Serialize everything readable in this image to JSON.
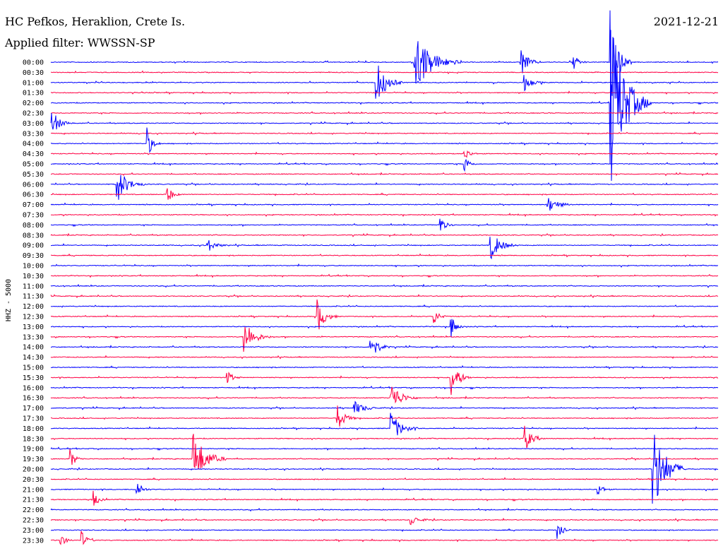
{
  "header": {
    "station": "HC Pefkos, Heraklion, Crete Is.",
    "filter": "Applied filter: WWSSN-SP",
    "date": "2021-12-21"
  },
  "chart_data": {
    "type": "line",
    "title": "HC Pefkos, Heraklion, Crete Is.",
    "ylabel": "HHZ - 5000",
    "colors": {
      "even_hour": "#0000ff",
      "half_hour": "#ff0044"
    },
    "rows": [
      "00:00",
      "00:30",
      "01:00",
      "01:30",
      "02:00",
      "02:30",
      "03:00",
      "03:30",
      "04:00",
      "04:30",
      "05:00",
      "05:30",
      "06:00",
      "06:30",
      "07:00",
      "07:30",
      "08:00",
      "08:30",
      "09:00",
      "09:30",
      "10:00",
      "10:30",
      "11:00",
      "11:30",
      "12:00",
      "12:30",
      "13:00",
      "13:30",
      "14:00",
      "14:30",
      "15:00",
      "15:30",
      "16:00",
      "16:30",
      "17:00",
      "17:30",
      "18:00",
      "18:30",
      "19:00",
      "19:30",
      "20:00",
      "20:30",
      "21:00",
      "21:30",
      "22:00",
      "22:30",
      "23:00",
      "23:30"
    ],
    "events": [
      {
        "row": 0,
        "x": 0.545,
        "amp": 3.2,
        "dur": 0.07
      },
      {
        "row": 0,
        "x": 0.705,
        "amp": 1.4,
        "dur": 0.03
      },
      {
        "row": 0,
        "x": 0.783,
        "amp": 0.9,
        "dur": 0.02
      },
      {
        "row": 0,
        "x": 0.84,
        "amp": 4.2,
        "dur": 0.03
      },
      {
        "row": 2,
        "x": 0.488,
        "amp": 2.2,
        "dur": 0.04
      },
      {
        "row": 2,
        "x": 0.71,
        "amp": 0.8,
        "dur": 0.03
      },
      {
        "row": 4,
        "x": 0.84,
        "amp": 8.5,
        "dur": 0.06
      },
      {
        "row": 6,
        "x": 0.003,
        "amp": 1.2,
        "dur": 0.03
      },
      {
        "row": 8,
        "x": 0.145,
        "amp": 1.4,
        "dur": 0.02
      },
      {
        "row": 9,
        "x": 0.62,
        "amp": 0.7,
        "dur": 0.02
      },
      {
        "row": 10,
        "x": 0.62,
        "amp": 0.9,
        "dur": 0.02
      },
      {
        "row": 12,
        "x": 0.1,
        "amp": 1.8,
        "dur": 0.04
      },
      {
        "row": 13,
        "x": 0.175,
        "amp": 0.9,
        "dur": 0.02
      },
      {
        "row": 14,
        "x": 0.745,
        "amp": 0.8,
        "dur": 0.04
      },
      {
        "row": 16,
        "x": 0.585,
        "amp": 0.7,
        "dur": 0.02
      },
      {
        "row": 18,
        "x": 0.66,
        "amp": 1.4,
        "dur": 0.04
      },
      {
        "row": 18,
        "x": 0.235,
        "amp": 0.7,
        "dur": 0.03
      },
      {
        "row": 25,
        "x": 0.4,
        "amp": 1.6,
        "dur": 0.03
      },
      {
        "row": 25,
        "x": 0.575,
        "amp": 0.7,
        "dur": 0.02
      },
      {
        "row": 26,
        "x": 0.6,
        "amp": 1.2,
        "dur": 0.02
      },
      {
        "row": 27,
        "x": 0.29,
        "amp": 1.8,
        "dur": 0.04
      },
      {
        "row": 28,
        "x": 0.48,
        "amp": 1.3,
        "dur": 0.03
      },
      {
        "row": 31,
        "x": 0.6,
        "amp": 1.9,
        "dur": 0.03
      },
      {
        "row": 31,
        "x": 0.265,
        "amp": 0.7,
        "dur": 0.02
      },
      {
        "row": 33,
        "x": 0.51,
        "amp": 1.6,
        "dur": 0.04
      },
      {
        "row": 34,
        "x": 0.455,
        "amp": 0.7,
        "dur": 0.04
      },
      {
        "row": 35,
        "x": 0.43,
        "amp": 1.2,
        "dur": 0.03
      },
      {
        "row": 36,
        "x": 0.51,
        "amp": 1.6,
        "dur": 0.04
      },
      {
        "row": 37,
        "x": 0.71,
        "amp": 1.3,
        "dur": 0.03
      },
      {
        "row": 39,
        "x": 0.214,
        "amp": 2.6,
        "dur": 0.05
      },
      {
        "row": 39,
        "x": 0.03,
        "amp": 0.9,
        "dur": 0.02
      },
      {
        "row": 40,
        "x": 0.903,
        "amp": 4.5,
        "dur": 0.05
      },
      {
        "row": 42,
        "x": 0.13,
        "amp": 0.8,
        "dur": 0.02
      },
      {
        "row": 42,
        "x": 0.82,
        "amp": 0.7,
        "dur": 0.02
      },
      {
        "row": 43,
        "x": 0.065,
        "amp": 0.7,
        "dur": 0.02
      },
      {
        "row": 45,
        "x": 0.54,
        "amp": 0.5,
        "dur": 0.03
      },
      {
        "row": 46,
        "x": 0.76,
        "amp": 1.1,
        "dur": 0.02
      },
      {
        "row": 47,
        "x": 0.015,
        "amp": 0.6,
        "dur": 0.02
      },
      {
        "row": 47,
        "x": 0.047,
        "amp": 0.8,
        "dur": 0.02
      }
    ]
  }
}
